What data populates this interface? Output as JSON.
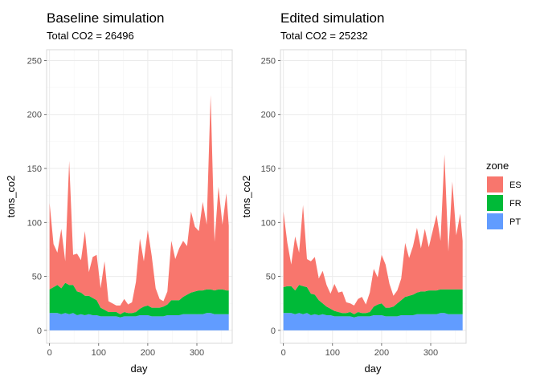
{
  "chart_data": [
    {
      "type": "area",
      "stacked": true,
      "title": "Baseline simulation",
      "subtitle": "Total CO2 = 26496",
      "xlabel": "day",
      "ylabel": "tons_co2",
      "xlim": [
        -6,
        372
      ],
      "ylim": [
        -12,
        260
      ],
      "xticks": [
        0,
        100,
        200,
        300
      ],
      "yticks": [
        0,
        50,
        100,
        150,
        200,
        250
      ],
      "grid": true,
      "x": [
        0,
        8,
        16,
        24,
        32,
        40,
        48,
        56,
        64,
        72,
        80,
        88,
        96,
        104,
        112,
        120,
        128,
        136,
        144,
        152,
        160,
        168,
        176,
        184,
        192,
        200,
        208,
        216,
        224,
        232,
        240,
        248,
        256,
        264,
        272,
        280,
        288,
        296,
        304,
        312,
        320,
        328,
        336,
        344,
        352,
        360,
        365
      ],
      "series": [
        {
          "name": "PT",
          "values": [
            16,
            16,
            16,
            15,
            16,
            15,
            16,
            14,
            15,
            14,
            15,
            14,
            14,
            13,
            13,
            13,
            13,
            13,
            12,
            13,
            13,
            13,
            13,
            14,
            14,
            14,
            13,
            13,
            13,
            13,
            14,
            14,
            14,
            14,
            15,
            15,
            15,
            15,
            15,
            15,
            16,
            16,
            15,
            15,
            15,
            15,
            15
          ]
        },
        {
          "name": "FR",
          "values": [
            22,
            24,
            26,
            24,
            28,
            27,
            26,
            22,
            20,
            18,
            17,
            16,
            14,
            8,
            6,
            4,
            4,
            4,
            3,
            4,
            3,
            3,
            4,
            6,
            8,
            9,
            8,
            8,
            8,
            9,
            10,
            14,
            14,
            14,
            16,
            18,
            20,
            21,
            22,
            22,
            22,
            22,
            22,
            23,
            23,
            22,
            22
          ]
        },
        {
          "name": "ES",
          "values": [
            80,
            40,
            30,
            55,
            20,
            115,
            28,
            35,
            30,
            60,
            22,
            38,
            42,
            18,
            45,
            10,
            8,
            6,
            8,
            12,
            8,
            10,
            28,
            65,
            42,
            70,
            48,
            18,
            8,
            5,
            12,
            55,
            38,
            48,
            52,
            45,
            75,
            60,
            55,
            82,
            60,
            180,
            45,
            95,
            60,
            90,
            60
          ]
        }
      ]
    },
    {
      "type": "area",
      "stacked": true,
      "title": "Edited simulation",
      "subtitle": "Total CO2 = 25232",
      "xlabel": "day",
      "ylabel": "tons_co2",
      "xlim": [
        -6,
        372
      ],
      "ylim": [
        -12,
        260
      ],
      "xticks": [
        0,
        100,
        200,
        300
      ],
      "yticks": [
        0,
        50,
        100,
        150,
        200,
        250
      ],
      "grid": true,
      "x": [
        0,
        8,
        16,
        24,
        32,
        40,
        48,
        56,
        64,
        72,
        80,
        88,
        96,
        104,
        112,
        120,
        128,
        136,
        144,
        152,
        160,
        168,
        176,
        184,
        192,
        200,
        208,
        216,
        224,
        232,
        240,
        248,
        256,
        264,
        272,
        280,
        288,
        296,
        304,
        312,
        320,
        328,
        336,
        344,
        352,
        360,
        365
      ],
      "series": [
        {
          "name": "PT",
          "values": [
            16,
            16,
            16,
            15,
            16,
            15,
            16,
            14,
            15,
            14,
            15,
            14,
            14,
            13,
            13,
            13,
            13,
            13,
            12,
            13,
            13,
            13,
            13,
            14,
            14,
            14,
            13,
            13,
            13,
            13,
            14,
            14,
            14,
            14,
            15,
            15,
            15,
            15,
            15,
            15,
            16,
            16,
            15,
            15,
            15,
            15,
            15
          ]
        },
        {
          "name": "FR",
          "values": [
            24,
            25,
            25,
            22,
            26,
            26,
            24,
            20,
            18,
            14,
            10,
            8,
            6,
            5,
            4,
            3,
            3,
            4,
            3,
            4,
            3,
            3,
            4,
            8,
            10,
            11,
            8,
            8,
            9,
            12,
            14,
            17,
            18,
            19,
            20,
            21,
            21,
            22,
            22,
            22,
            22,
            22,
            23,
            23,
            23,
            23,
            23
          ]
        },
        {
          "name": "ES",
          "values": [
            70,
            40,
            20,
            50,
            30,
            75,
            26,
            30,
            35,
            20,
            30,
            20,
            14,
            25,
            18,
            20,
            10,
            8,
            8,
            12,
            15,
            8,
            18,
            35,
            25,
            45,
            40,
            22,
            10,
            12,
            20,
            50,
            35,
            45,
            60,
            40,
            58,
            40,
            55,
            70,
            45,
            125,
            35,
            100,
            50,
            70,
            45
          ]
        }
      ]
    }
  ],
  "legend": {
    "title": "zone",
    "position": "right",
    "items": [
      {
        "label": "ES",
        "color": "#F8766D"
      },
      {
        "label": "FR",
        "color": "#00BA38"
      },
      {
        "label": "PT",
        "color": "#619CFF"
      }
    ]
  }
}
